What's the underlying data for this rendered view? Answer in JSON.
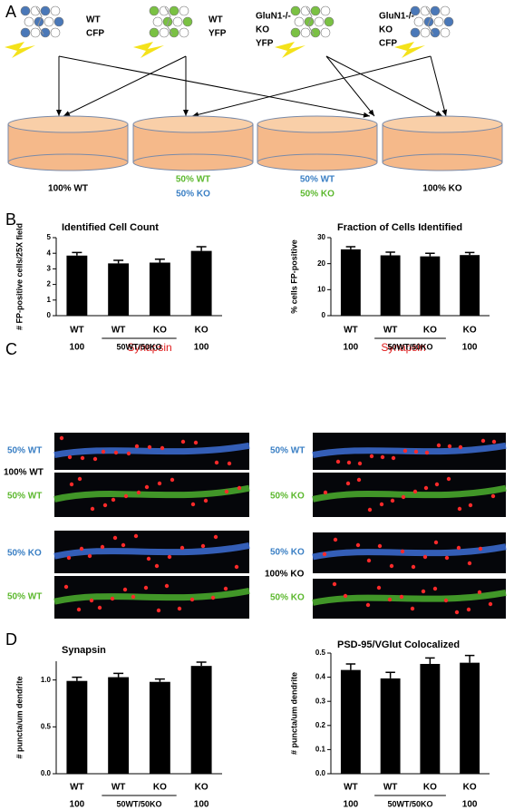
{
  "panel_labels": [
    "A",
    "B",
    "C",
    "D"
  ],
  "diagram": {
    "sources": [
      [
        "WT",
        "CFP"
      ],
      [
        "WT",
        "YFP"
      ],
      [
        "GluN1-/-",
        "KO",
        "YFP"
      ],
      [
        "GluN1-/-",
        "KO",
        "CFP"
      ]
    ],
    "dishes": [
      [
        "100% WT"
      ],
      [
        "50% WT",
        "50% KO"
      ],
      [
        "50% WT",
        "50% KO"
      ],
      [
        "100% KO"
      ]
    ]
  },
  "micrographs": {
    "stain_labels": [
      "Synapsin",
      "Synapsin"
    ],
    "row_labels": [
      "50% WT",
      "100% WT",
      "50% WT",
      "50% KO",
      "50% WT",
      "50% WT",
      "50% KO",
      "50% KO",
      "100% KO",
      "50% KO"
    ]
  },
  "chart_data": [
    {
      "type": "bar",
      "title": "Identified Cell Count",
      "y_label": "# FP-positive cells/25X field",
      "categories": [
        "WT",
        "WT",
        "KO",
        "KO"
      ],
      "category_sublabels": [
        "100",
        null,
        null,
        "100"
      ],
      "group_label": "50WT/50KO",
      "values": [
        3.85,
        3.35,
        3.4,
        4.15
      ],
      "errors": [
        0.2,
        0.2,
        0.22,
        0.27
      ],
      "color": "#000000",
      "ylim": [
        0,
        5
      ],
      "yticks": [
        0,
        1,
        2,
        3,
        4,
        5
      ]
    },
    {
      "type": "bar",
      "title": "Fraction of Cells Identified",
      "y_label": "% cells FP-positive",
      "categories": [
        "WT",
        "WT",
        "KO",
        "KO"
      ],
      "category_sublabels": [
        "100",
        null,
        null,
        "100"
      ],
      "group_label": "50WT/50KO",
      "values": [
        25.5,
        23.2,
        22.8,
        23.3
      ],
      "errors": [
        1.0,
        1.2,
        1.2,
        1.0
      ],
      "color": "#000000",
      "ylim": [
        0,
        30
      ],
      "yticks": [
        0,
        10,
        20,
        30
      ]
    },
    {
      "type": "bar",
      "title": "Synapsin",
      "y_label": "# puncta/um dendrite",
      "categories": [
        "WT",
        "WT",
        "KO",
        "KO"
      ],
      "category_sublabels": [
        "100",
        null,
        null,
        "100"
      ],
      "group_label": "50WT/50KO",
      "values": [
        0.99,
        1.03,
        0.98,
        1.15
      ],
      "errors": [
        0.04,
        0.04,
        0.03,
        0.04
      ],
      "color": "#000000",
      "ylim": [
        0,
        1.2
      ],
      "yticks": [
        {
          "value": 0,
          "label": "0.0"
        },
        0.5,
        {
          "value": 1,
          "label": "1.0"
        }
      ]
    },
    {
      "type": "bar",
      "title": "PSD-95/VGlut Colocalized",
      "y_label": "# puncta/um dendrite",
      "categories": [
        "WT",
        "WT",
        "KO",
        "KO"
      ],
      "category_sublabels": [
        "100",
        null,
        null,
        "100"
      ],
      "group_label": "50WT/50KO",
      "values": [
        0.43,
        0.395,
        0.455,
        0.46
      ],
      "errors": [
        0.025,
        0.025,
        0.025,
        0.03
      ],
      "color": "#000000",
      "ylim": [
        0,
        0.5
      ],
      "yticks": [
        {
          "value": 0,
          "label": "0.0"
        },
        0.1,
        0.2,
        0.3,
        0.4,
        0.5
      ]
    }
  ]
}
